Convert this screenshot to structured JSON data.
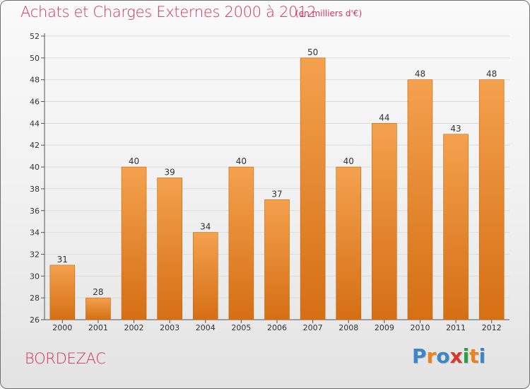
{
  "header": {
    "title": "Achats et Charges Externes 2000 à 2012",
    "unit": "(en milliers d'€)"
  },
  "footer": {
    "commune": "BORDEZAC",
    "brand": "Proxiti"
  },
  "colors": {
    "bar_light": "#f4a14e",
    "bar_dark": "#d56f14",
    "title": "#d6335f",
    "brand_letters": [
      "#3a86c8",
      "#e8841f",
      "#3a86c8",
      "#d63a2f",
      "#2e9c4a",
      "#e8841f",
      "#3a86c8"
    ]
  },
  "chart_data": {
    "type": "bar",
    "title": "Achats et Charges Externes 2000 à 2012",
    "subtitle": "(en milliers d'€)",
    "categories": [
      "2000",
      "2001",
      "2002",
      "2003",
      "2004",
      "2005",
      "2006",
      "2007",
      "2008",
      "2009",
      "2010",
      "2011",
      "2012"
    ],
    "values": [
      31,
      28,
      40,
      39,
      34,
      40,
      37,
      50,
      40,
      44,
      48,
      43,
      48
    ],
    "ylim": [
      26,
      52
    ],
    "yticks": [
      26,
      28,
      30,
      32,
      34,
      36,
      38,
      40,
      42,
      44,
      46,
      48,
      50,
      52
    ],
    "xlabel": "",
    "ylabel": "",
    "grid": true,
    "legend": "none"
  }
}
